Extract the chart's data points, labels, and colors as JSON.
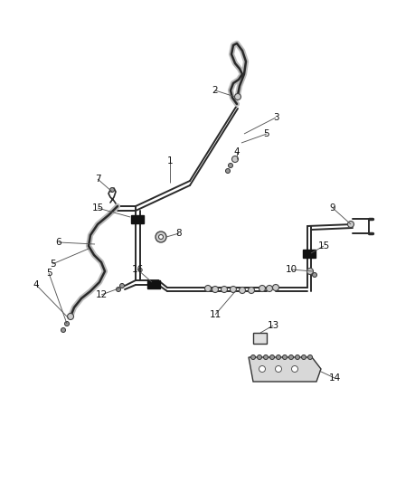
{
  "background": "#ffffff",
  "lc": "#2a2a2a",
  "bc": "#111111",
  "cc": "#555555",
  "figsize": [
    4.38,
    5.33
  ],
  "dpi": 100,
  "tube_lw": 1.4,
  "flex_inner_lw": 1.8,
  "flex_outer_lw": 4.5,
  "callout_lw": 0.65,
  "label_fs": 7.5
}
